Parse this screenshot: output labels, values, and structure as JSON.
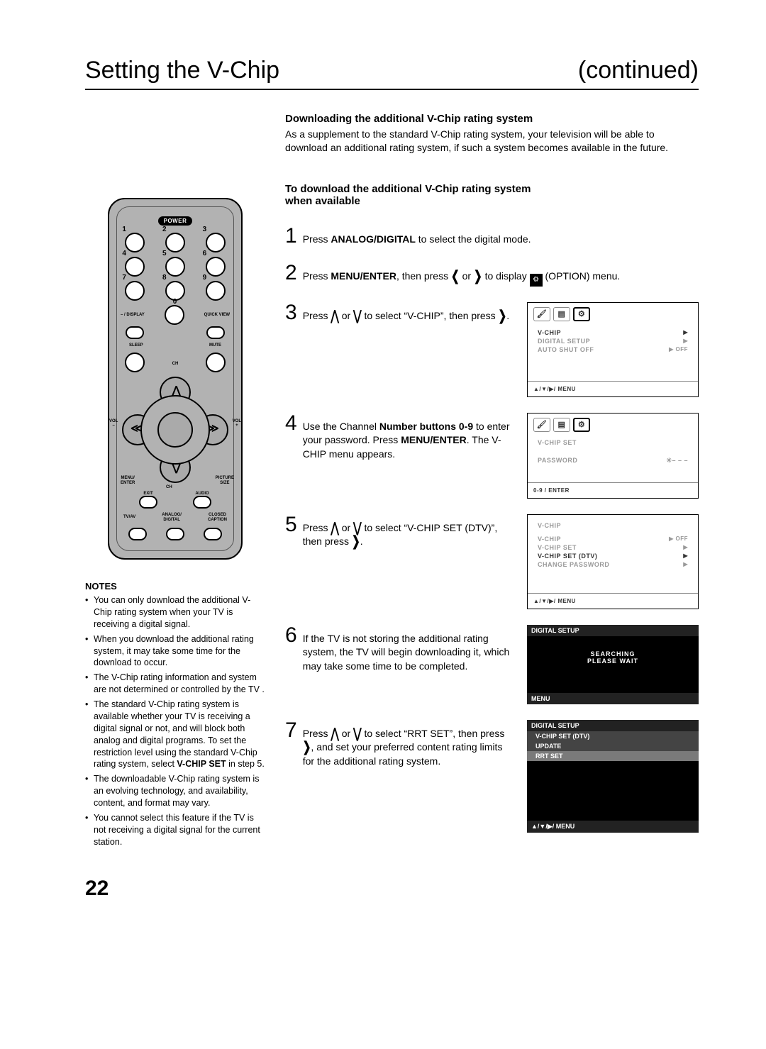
{
  "page": {
    "title": "Setting the V-Chip",
    "cont": "(continued)",
    "number": "22"
  },
  "intro": {
    "heading": "Downloading the additional V-Chip rating system",
    "body": "As a supplement to the standard V-Chip rating system, your television will be able to download an additional rating system, if such a system becomes available in the future."
  },
  "proc_heading_l1": "To download the additional V-Chip rating system",
  "proc_heading_l2": "when available",
  "steps": {
    "s1": {
      "n": "1",
      "a": "Press ",
      "b": "ANALOG/DIGITAL",
      "c": " to select the digital mode."
    },
    "s2": {
      "n": "2",
      "a": "Press ",
      "b": "MENU/ENTER",
      "c": ", then press ",
      "d": " or ",
      "e": " to display ",
      "f": " (OPTION) menu."
    },
    "s3": {
      "n": "3",
      "a": "Press ",
      "b": " or ",
      "c": " to select “V-CHIP”, then press ",
      "d": "."
    },
    "s4": {
      "n": "4",
      "a": "Use the Channel ",
      "b": "Number buttons 0-9",
      "c": " to enter your password. Press ",
      "d": "MENU/ENTER",
      "e": ". The V-CHIP menu appears."
    },
    "s5": {
      "n": "5",
      "a": "Press ",
      "b": " or ",
      "c": " to select “V-CHIP SET (DTV)”, then press ",
      "d": "."
    },
    "s6": {
      "n": "6",
      "a": "If the TV is not storing the additional rating system, the TV will begin downloading it, which may take some time to be completed."
    },
    "s7": {
      "n": "7",
      "a": "Press ",
      "b": " or ",
      "c": " to select “RRT SET”, then press ",
      "d": ", and set your preferred content rating limits for the additional rating system."
    }
  },
  "osd3": {
    "l1a": "V-CHIP",
    "l1b": "▶",
    "l2a": "DIGITAL SETUP",
    "l2b": "▶",
    "l3a": "AUTO SHUT OFF",
    "l3b": "▶ OFF",
    "foot": "▲/▼/▶/ MENU"
  },
  "osd4": {
    "title": "V-CHIP SET",
    "pw_label": "PASSWORD",
    "pw_val": "✳– – –",
    "foot": "0-9 / ENTER"
  },
  "osd5": {
    "title": "V-CHIP",
    "l1a": "V-CHIP",
    "l1b": "▶ OFF",
    "l2a": "V-CHIP SET",
    "l2b": "▶",
    "l3a": "V-CHIP SET (DTV)",
    "l3b": "▶",
    "l4a": "CHANGE PASSWORD",
    "l4b": "▶",
    "foot": "▲/▼/▶/ MENU"
  },
  "osd6": {
    "hd": "DIGITAL SETUP",
    "l1": "SEARCHING",
    "l2": "PLEASE WAIT",
    "ft": "MENU"
  },
  "osd7": {
    "hd": "DIGITAL SETUP",
    "r1": "V-CHIP SET (DTV)",
    "r2": "UPDATE",
    "r3": "RRT SET",
    "ft": "▲/▼/▶/ MENU"
  },
  "remote": {
    "power": "POWER",
    "nums": [
      "1",
      "2",
      "3",
      "4",
      "5",
      "6",
      "7",
      "8",
      "9",
      "0"
    ],
    "dash": "–",
    "display": "/ DISPLAY",
    "quickview": "QUICK VIEW",
    "sleep": "SLEEP",
    "mute": "MUTE",
    "ch": "CH",
    "vol_minus": "VOL\n–",
    "vol_plus": "VOL\n+",
    "menu_enter": "MENU/\nENTER",
    "picture_size": "PICTURE\nSIZE",
    "exit": "EXIT",
    "audio": "AUDIO",
    "tvav": "TV/AV",
    "ad": "ANALOG/\nDIGITAL",
    "cc": "CLOSED\nCAPTION"
  },
  "notes_title": "NOTES",
  "notes": [
    "You can only download the additional V-Chip rating system when your TV is receiving a digital signal.",
    "When you download the additional rating system, it may take some time for the download to occur.",
    "The V-Chip rating information and system are not determined or controlled by the TV .",
    "The standard V-Chip rating system is available whether your TV is receiving a digital signal or not, and will block both analog and digital programs. To set the restriction level using the standard V-Chip rating system, select <b>V-CHIP SET</b> in step 5.",
    "The downloadable V-Chip rating system is an evolving technology, and availability, content, and format may vary.",
    "You cannot select this feature if the TV is not receiving a digital signal for the current station."
  ]
}
